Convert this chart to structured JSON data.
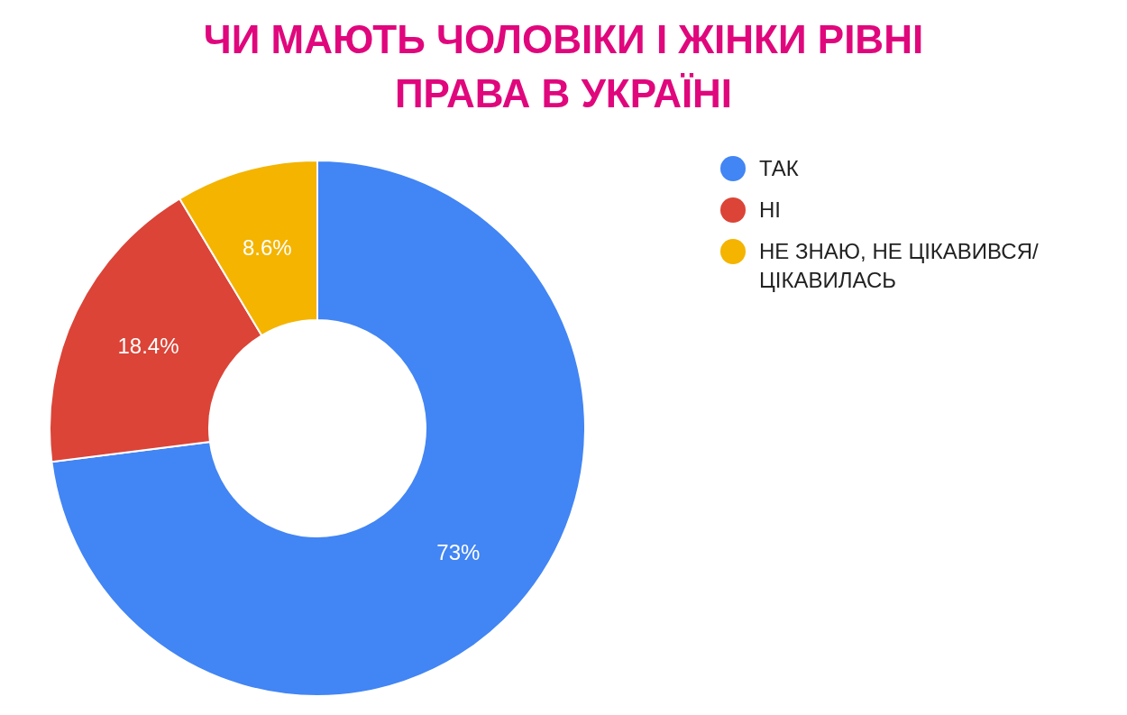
{
  "chart_data": {
    "type": "donut",
    "title": "ЧИ МАЮТЬ ЧОЛОВІКИ І ЖІНКИ РІВНІ ПРАВА В УКРАЇНІ",
    "categories": [
      "ТАК",
      "НІ",
      "НЕ ЗНАЮ, НЕ ЦІКАВИВСЯ/ЦІКАВИЛАСЬ"
    ],
    "values": [
      73,
      18.4,
      8.6
    ],
    "colors": [
      "#4285f4",
      "#db4437",
      "#f4b400"
    ],
    "value_labels": [
      "73%",
      "18.4%",
      "8.6%"
    ],
    "legend": "top right"
  }
}
